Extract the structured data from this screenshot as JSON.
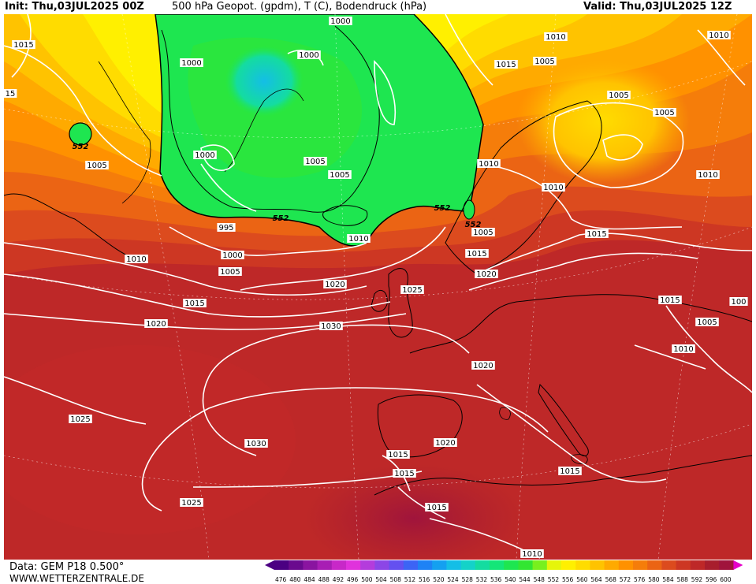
{
  "header": {
    "init": "Init: Thu,03JUL2025 00Z",
    "title": "500 hPa Geopot. (gpdm), T (C), Bodendruck (hPa)",
    "valid": "Valid: Thu,03JUL2025 12Z"
  },
  "footer": {
    "data_source": "Data: GEM P18 0.500°",
    "website": "WWW.WETTERZENTRALE.DE"
  },
  "legend": {
    "values": [
      "476",
      "480",
      "484",
      "488",
      "492",
      "496",
      "500",
      "504",
      "508",
      "512",
      "516",
      "520",
      "524",
      "528",
      "532",
      "536",
      "540",
      "544",
      "548",
      "552",
      "556",
      "560",
      "564",
      "568",
      "572",
      "576",
      "580",
      "584",
      "588",
      "592",
      "596",
      "600"
    ],
    "colors": [
      "#4b0082",
      "#6a0a8e",
      "#8a14a0",
      "#a81eb4",
      "#c828c8",
      "#e032dc",
      "#b43cdc",
      "#8c46e6",
      "#6450f0",
      "#3c64f5",
      "#1e82f5",
      "#14a0f0",
      "#14bee6",
      "#14d2c8",
      "#14dca0",
      "#14e678",
      "#1ee650",
      "#32e632",
      "#78f01e",
      "#e6f50a",
      "#fff000",
      "#ffdc00",
      "#ffc300",
      "#ffaa00",
      "#ff9100",
      "#f57d0a",
      "#eb6414",
      "#dc4b1e",
      "#cd3723",
      "#be2828",
      "#a81e2d",
      "#a0143c"
    ],
    "arrow_left_color": "#4b0082",
    "arrow_right_color": "#e600c8"
  },
  "pressure_labels": [
    {
      "text": "1015"
    },
    {
      "text": "1000"
    },
    {
      "text": "1000"
    },
    {
      "text": "1000"
    },
    {
      "text": "1010"
    },
    {
      "text": "1015"
    },
    {
      "text": "1005"
    },
    {
      "text": "1010"
    },
    {
      "text": "15"
    },
    {
      "text": "1005"
    },
    {
      "text": "1005"
    },
    {
      "text": "1005"
    },
    {
      "text": "1000"
    },
    {
      "text": "1005"
    },
    {
      "text": "1005"
    },
    {
      "text": "1010"
    },
    {
      "text": "1010"
    },
    {
      "text": "1010"
    },
    {
      "text": "995"
    },
    {
      "text": "1010"
    },
    {
      "text": "1005"
    },
    {
      "text": "1015"
    },
    {
      "text": "1000"
    },
    {
      "text": "1010"
    },
    {
      "text": "1015"
    },
    {
      "text": "1005"
    },
    {
      "text": "1020"
    },
    {
      "text": "1020"
    },
    {
      "text": "1025"
    },
    {
      "text": "1015"
    },
    {
      "text": "100"
    },
    {
      "text": "1015"
    },
    {
      "text": "1005"
    },
    {
      "text": "1020"
    },
    {
      "text": "1030"
    },
    {
      "text": "1010"
    },
    {
      "text": "1020"
    },
    {
      "text": "1025"
    },
    {
      "text": "1030"
    },
    {
      "text": "1015"
    },
    {
      "text": "1020"
    },
    {
      "text": "1015"
    },
    {
      "text": "1015"
    },
    {
      "text": "1025"
    },
    {
      "text": "1015"
    },
    {
      "text": "1010"
    }
  ],
  "geopot_labels": [
    {
      "text": "552"
    },
    {
      "text": "552"
    },
    {
      "text": "552"
    },
    {
      "text": "552"
    }
  ]
}
